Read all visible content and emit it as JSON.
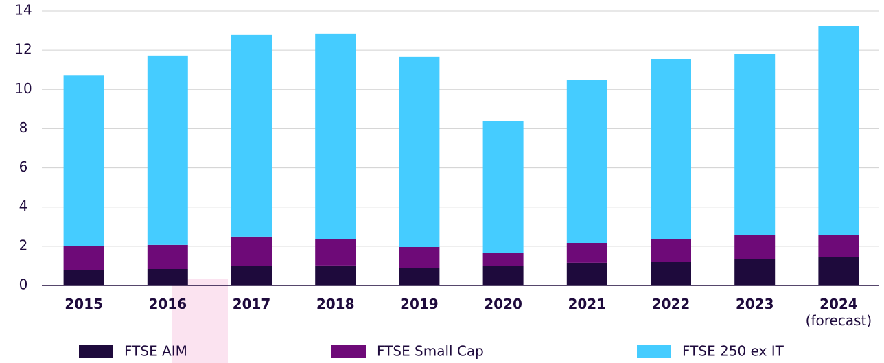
{
  "chart_data": {
    "type": "stacked_bar",
    "categories": [
      "2015",
      "2016",
      "2017",
      "2018",
      "2019",
      "2020",
      "2021",
      "2022",
      "2023",
      "2024\n(forecast)"
    ],
    "series": [
      {
        "name": "FTSE AIM",
        "color": "#1e0a3c",
        "values": [
          0.78,
          0.84,
          0.98,
          1.02,
          0.88,
          0.98,
          1.16,
          1.19,
          1.33,
          1.47
        ]
      },
      {
        "name": "FTSE Small Cap",
        "color": "#6e0a78",
        "values": [
          1.25,
          1.23,
          1.51,
          1.36,
          1.08,
          0.67,
          1.01,
          1.19,
          1.26,
          1.09
        ]
      },
      {
        "name": "FTSE 250 ex IT",
        "color": "#45ccff",
        "values": [
          8.67,
          9.66,
          10.29,
          10.47,
          9.7,
          6.72,
          8.3,
          9.17,
          9.24,
          10.67
        ]
      }
    ],
    "ylim": [
      0,
      14
    ],
    "yticks": [
      0,
      2,
      4,
      6,
      8,
      10,
      12,
      14
    ],
    "grid": true,
    "legend": "bottom"
  }
}
